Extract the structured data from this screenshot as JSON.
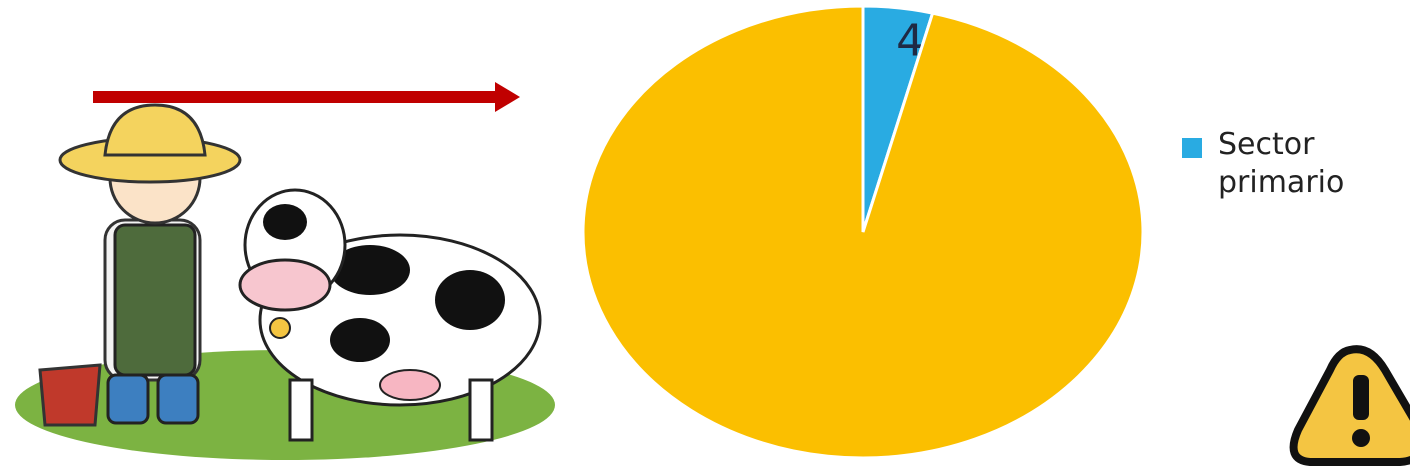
{
  "chart_data": {
    "type": "pie",
    "categories": [
      "Sector primario",
      null
    ],
    "values": [
      4,
      96
    ],
    "value_labels": [
      "4%",
      null
    ],
    "colors": [
      "#29abe2",
      "#fbbf00"
    ],
    "start_angle": 0,
    "direction": "clockwise"
  }
}
